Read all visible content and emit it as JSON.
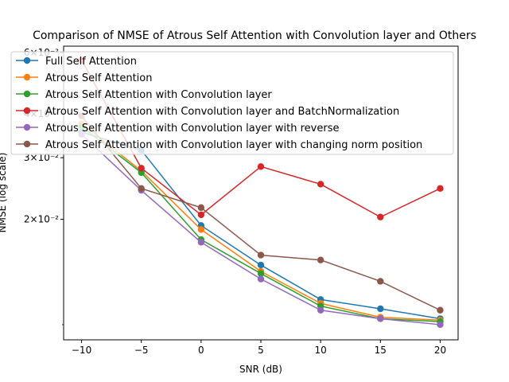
{
  "chart_data": {
    "type": "line",
    "title": "Comparison of NMSE of Atrous Self Attention with Convolution layer and Others",
    "xlabel": "SNR (dB)",
    "ylabel": "NMSE (log scale)",
    "x": [
      -10,
      -5,
      0,
      5,
      10,
      15,
      20
    ],
    "xticks": [
      -10,
      -5,
      0,
      5,
      10,
      15,
      20
    ],
    "xtick_labels": [
      "−10",
      "−5",
      "0",
      "5",
      "10",
      "15",
      "20"
    ],
    "xlim": [
      -11.5,
      21.5
    ],
    "ylim": [
      0.00905,
      0.0625
    ],
    "yscale": "log",
    "yticks": [
      0.02,
      0.03,
      0.04,
      0.06
    ],
    "ytick_labels": [
      "2×10⁻²",
      "3×10⁻²",
      "4×10⁻²",
      "6×10⁻²"
    ],
    "grid": false,
    "legend_position": "top-left",
    "series": [
      {
        "name": "Full Self Attention",
        "color": "#1f77b4",
        "values": [
          0.0355,
          0.0315,
          0.0192,
          0.0148,
          0.0118,
          0.0111,
          0.0104
        ]
      },
      {
        "name": "Atrous Self Attention",
        "color": "#ff7f0e",
        "values": [
          0.0375,
          0.0275,
          0.0187,
          0.0142,
          0.0115,
          0.0105,
          0.0103
        ]
      },
      {
        "name": "Atrous Self Attention with Convolution layer",
        "color": "#2ca02c",
        "values": [
          0.0368,
          0.0272,
          0.0175,
          0.014,
          0.0113,
          0.0104,
          0.0102
        ]
      },
      {
        "name": "Atrous Self Attention with Convolution layer and BatchNormalization",
        "color": "#d62728",
        "values": [
          0.057,
          0.028,
          0.0206,
          0.0283,
          0.0252,
          0.0203,
          0.0245
        ]
      },
      {
        "name": "Atrous Self Attention with Convolution layer with reverse",
        "color": "#9467bd",
        "values": [
          0.035,
          0.0242,
          0.0172,
          0.0135,
          0.011,
          0.0104,
          0.01
        ]
      },
      {
        "name": "Atrous Self Attention with Convolution layer with changing norm position",
        "color": "#8c564b",
        "values": [
          0.0395,
          0.0245,
          0.0216,
          0.0158,
          0.0153,
          0.0133,
          0.011
        ]
      }
    ]
  }
}
